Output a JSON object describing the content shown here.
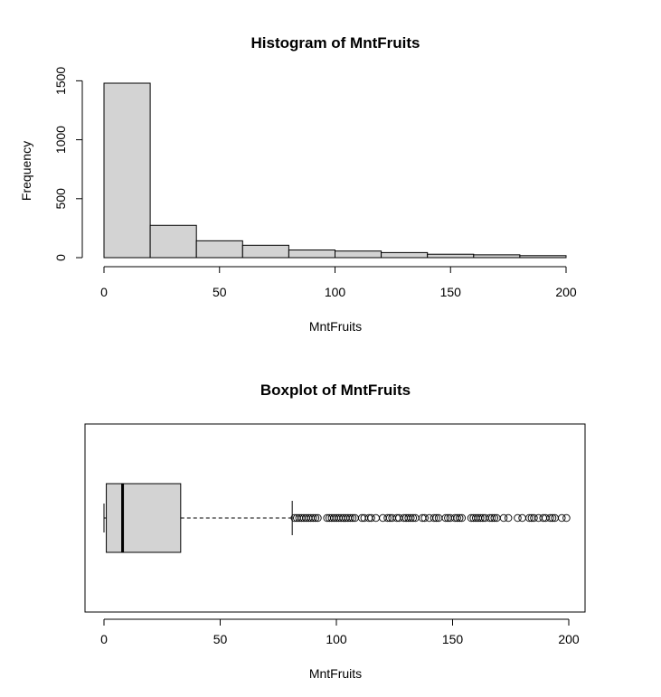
{
  "chart_data": [
    {
      "type": "bar",
      "title": "Histogram of MntFruits",
      "xlabel": "MntFruits",
      "ylabel": "Frequency",
      "bins": [
        {
          "from": 0,
          "to": 20,
          "count": 1480
        },
        {
          "from": 20,
          "to": 40,
          "count": 274
        },
        {
          "from": 40,
          "to": 60,
          "count": 143
        },
        {
          "from": 60,
          "to": 80,
          "count": 105
        },
        {
          "from": 80,
          "to": 100,
          "count": 65
        },
        {
          "from": 100,
          "to": 120,
          "count": 56
        },
        {
          "from": 120,
          "to": 140,
          "count": 43
        },
        {
          "from": 140,
          "to": 160,
          "count": 29
        },
        {
          "from": 160,
          "to": 180,
          "count": 24
        },
        {
          "from": 180,
          "to": 200,
          "count": 17
        }
      ],
      "xlim": [
        0,
        200
      ],
      "ylim": [
        0,
        1480
      ],
      "x_ticks": [
        "0",
        "50",
        "100",
        "150",
        "200"
      ],
      "y_ticks": [
        "0",
        "500",
        "1000",
        "1500"
      ],
      "grid": false
    },
    {
      "type": "boxplot",
      "orientation": "horizontal",
      "title": "Boxplot of MntFruits",
      "xlabel": "MntFruits",
      "xlim": [
        -8,
        207
      ],
      "x_ticks": [
        "0",
        "50",
        "100",
        "150",
        "200"
      ],
      "stats": {
        "min": 0,
        "q1": 1,
        "median": 8,
        "q3": 33,
        "whisker_high": 81
      },
      "outliers": [
        82,
        83,
        84,
        85,
        86,
        87,
        88,
        89,
        90,
        91,
        92,
        96,
        97,
        98,
        99,
        100,
        101,
        102,
        103,
        104,
        105,
        106,
        107,
        108,
        111,
        112,
        114,
        115,
        117,
        120,
        122,
        123,
        124,
        126,
        127,
        129,
        130,
        131,
        132,
        133,
        134,
        137,
        138,
        140,
        142,
        143,
        144,
        147,
        148,
        149,
        151,
        152,
        153,
        154,
        158,
        159,
        160,
        161,
        162,
        163,
        164,
        166,
        167,
        168,
        169,
        172,
        174,
        178,
        180,
        183,
        184,
        185,
        187,
        189,
        190,
        192,
        193,
        194,
        197,
        199
      ],
      "grid": false
    }
  ]
}
